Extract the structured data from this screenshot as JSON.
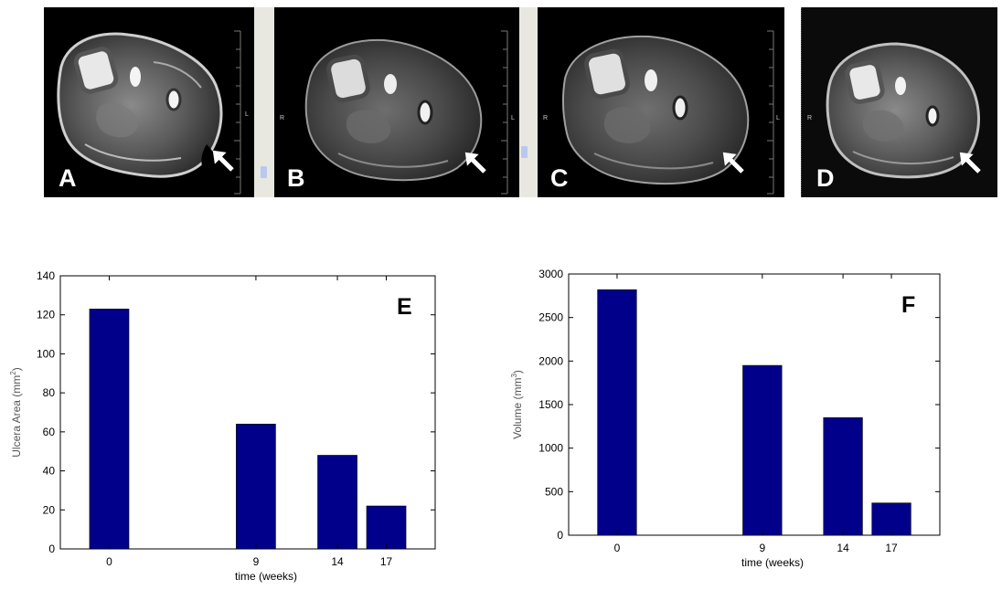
{
  "mri_panels": [
    {
      "letter": "A",
      "side_left": "",
      "side_right": "L"
    },
    {
      "letter": "B",
      "side_left": "R",
      "side_right": "L"
    },
    {
      "letter": "C",
      "side_left": "R",
      "side_right": "L"
    },
    {
      "letter": "D",
      "side_left": "R",
      "side_right": ""
    }
  ],
  "colors": {
    "bar": "#00008B",
    "axis": "#000000",
    "panel_bg": "#000000"
  },
  "chart_data": [
    {
      "type": "bar",
      "panel_label": "E",
      "categories": [
        "0",
        "9",
        "14",
        "17"
      ],
      "x": [
        0,
        9,
        14,
        17
      ],
      "values": [
        123,
        64,
        48,
        22
      ],
      "xlabel": "time (weeks)",
      "ylabel": "Ulcera Area (mm",
      "ylabel_sup": "2",
      "ylabel_end": ")",
      "ylim": [
        0,
        140
      ],
      "yticks": [
        0,
        20,
        40,
        60,
        80,
        100,
        120,
        140
      ],
      "xlim": [
        -3,
        20
      ],
      "grid": false,
      "legend": "none"
    },
    {
      "type": "bar",
      "panel_label": "F",
      "categories": [
        "0",
        "9",
        "14",
        "17"
      ],
      "x": [
        0,
        9,
        14,
        17
      ],
      "values": [
        2820,
        1950,
        1350,
        370
      ],
      "xlabel": "time (weeks)",
      "ylabel": "Volume  (mm",
      "ylabel_sup": "3",
      "ylabel_end": ")",
      "ylim": [
        0,
        3000
      ],
      "yticks": [
        0,
        500,
        1000,
        1500,
        2000,
        2500,
        3000
      ],
      "xlim": [
        -3,
        20
      ],
      "grid": false,
      "legend": "none"
    }
  ]
}
